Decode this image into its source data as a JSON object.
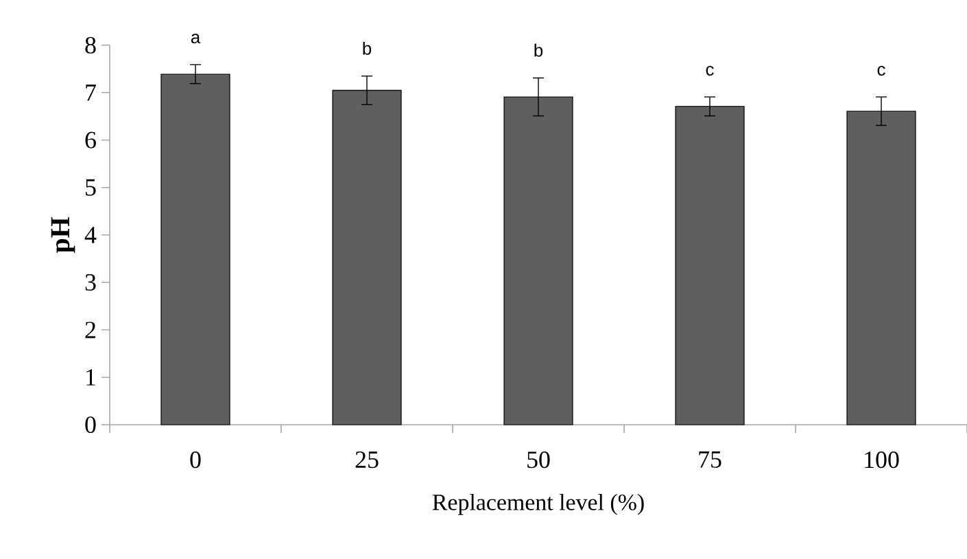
{
  "chart_data": {
    "type": "bar",
    "xlabel": "Replacement level (%)",
    "ylabel": "pH",
    "categories": [
      "0",
      "25",
      "50",
      "75",
      "100"
    ],
    "values": [
      7.39,
      7.05,
      6.91,
      6.71,
      6.61
    ],
    "errors": [
      0.2,
      0.3,
      0.4,
      0.2,
      0.3
    ],
    "color": "#5f5f5f",
    "ylim": [
      0,
      8
    ],
    "yticks": [
      0,
      1,
      2,
      3,
      4,
      5,
      6,
      7,
      8
    ],
    "annotations": [
      "a",
      "b",
      "b",
      "c",
      "c"
    ]
  }
}
